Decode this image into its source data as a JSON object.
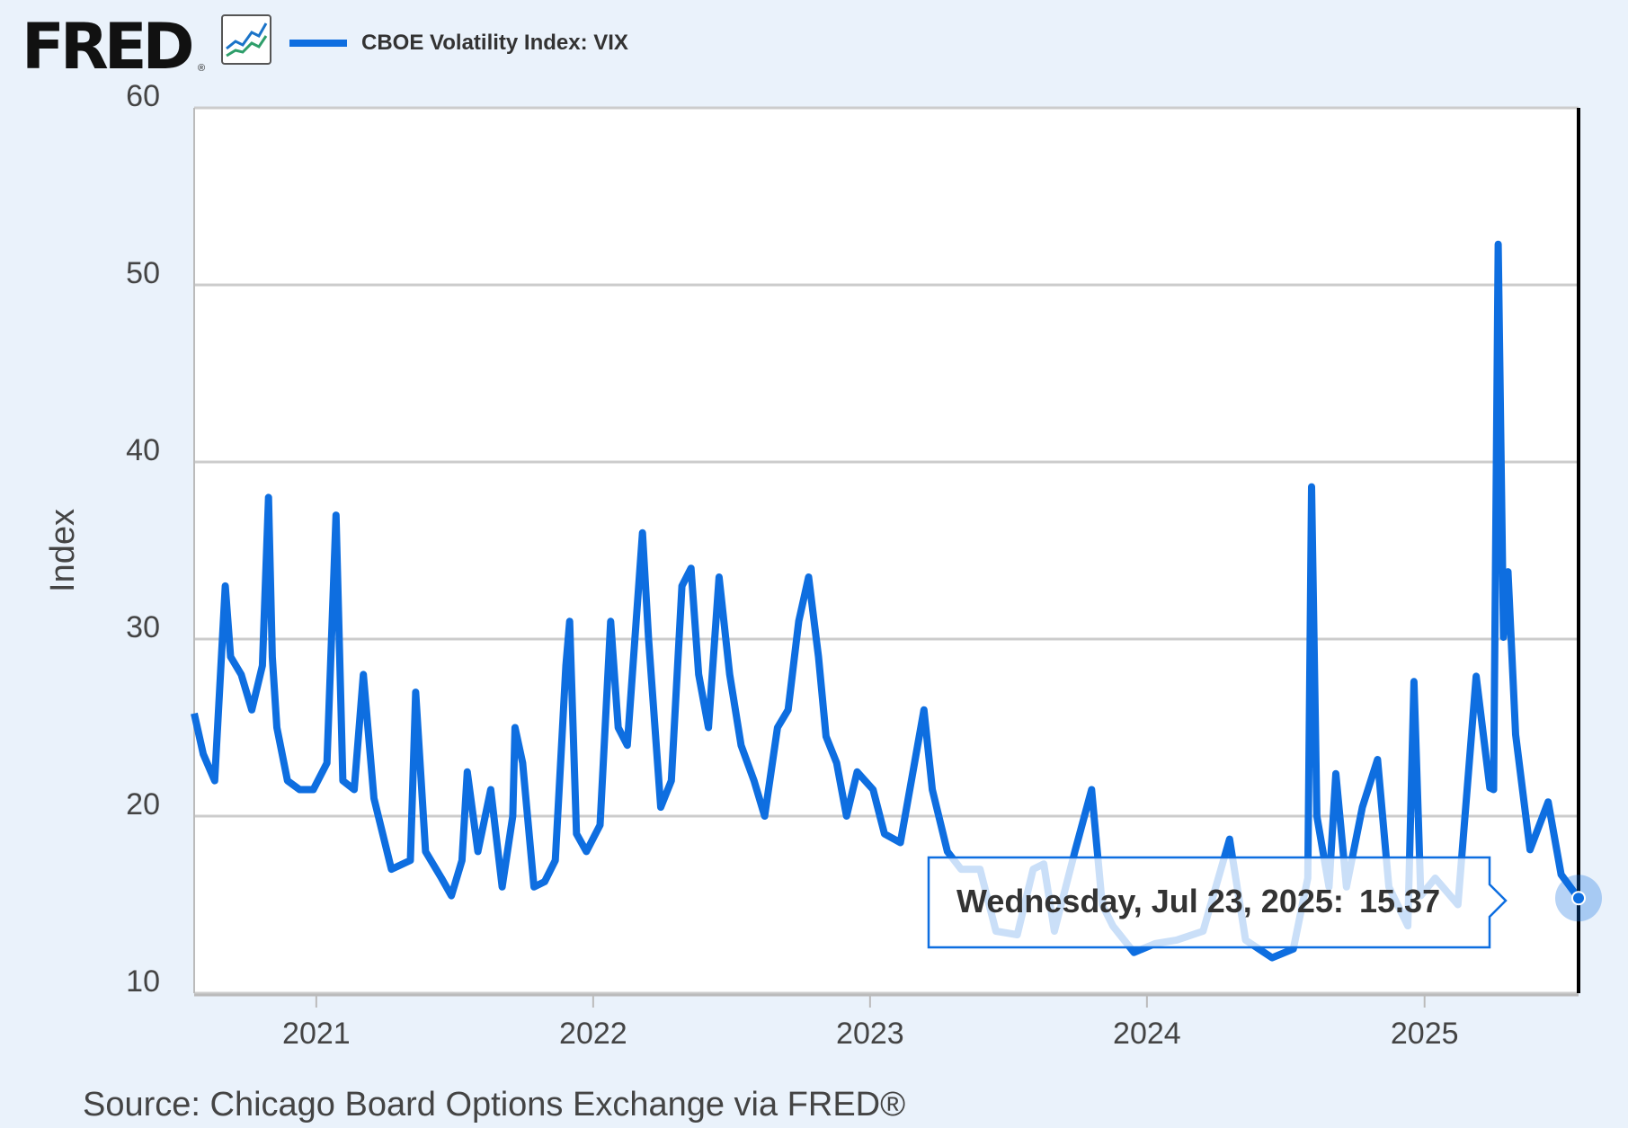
{
  "header": {
    "logo_text": "FRED",
    "logo_reg": "®",
    "icon": "line-chart-icon",
    "legend_label": "CBOE Volatility Index: VIX"
  },
  "source": "Source: Chicago Board Options Exchange via FRED®",
  "colors": {
    "series": "#0e6ee0",
    "background": "#eaf2fb",
    "plot": "#ffffff",
    "grid": "#cccccc",
    "tooltip_border": "#0e6ee0"
  },
  "tooltip": {
    "date": "Wednesday, Jul 23, 2025:",
    "value": "15.37"
  },
  "chart_data": {
    "type": "line",
    "title": "",
    "xlabel": "",
    "ylabel": "Index",
    "ylim": [
      10,
      60
    ],
    "yticks": [
      10,
      20,
      30,
      40,
      50,
      60
    ],
    "xlim": [
      "2020-07-24",
      "2025-07-23"
    ],
    "xticks": [
      {
        "label": "2021",
        "date": "2021-01-01"
      },
      {
        "label": "2022",
        "date": "2022-01-01"
      },
      {
        "label": "2023",
        "date": "2023-01-01"
      },
      {
        "label": "2024",
        "date": "2024-01-01"
      },
      {
        "label": "2025",
        "date": "2025-01-01"
      }
    ],
    "grid": true,
    "legend": "top-left",
    "series": [
      {
        "name": "CBOE Volatility Index: VIX",
        "points": [
          [
            "2020-07-24",
            25.8
          ],
          [
            "2020-08-05",
            23.5
          ],
          [
            "2020-08-20",
            22.0
          ],
          [
            "2020-09-03",
            33.0
          ],
          [
            "2020-09-10",
            29.0
          ],
          [
            "2020-09-24",
            28.0
          ],
          [
            "2020-10-08",
            26.0
          ],
          [
            "2020-10-22",
            28.5
          ],
          [
            "2020-10-30",
            38.0
          ],
          [
            "2020-11-04",
            29.0
          ],
          [
            "2020-11-10",
            25.0
          ],
          [
            "2020-11-24",
            22.0
          ],
          [
            "2020-12-10",
            21.5
          ],
          [
            "2020-12-28",
            21.5
          ],
          [
            "2021-01-15",
            23.0
          ],
          [
            "2021-01-27",
            37.0
          ],
          [
            "2021-02-05",
            22.0
          ],
          [
            "2021-02-20",
            21.5
          ],
          [
            "2021-03-04",
            28.0
          ],
          [
            "2021-03-18",
            21.0
          ],
          [
            "2021-04-10",
            17.0
          ],
          [
            "2021-05-05",
            17.5
          ],
          [
            "2021-05-12",
            27.0
          ],
          [
            "2021-05-25",
            18.0
          ],
          [
            "2021-06-15",
            16.5
          ],
          [
            "2021-06-28",
            15.5
          ],
          [
            "2021-07-12",
            17.5
          ],
          [
            "2021-07-19",
            22.5
          ],
          [
            "2021-08-02",
            18.0
          ],
          [
            "2021-08-19",
            21.5
          ],
          [
            "2021-09-03",
            16.0
          ],
          [
            "2021-09-17",
            20.0
          ],
          [
            "2021-09-20",
            25.0
          ],
          [
            "2021-09-30",
            23.0
          ],
          [
            "2021-10-15",
            16.0
          ],
          [
            "2021-10-29",
            16.3
          ],
          [
            "2021-11-12",
            17.5
          ],
          [
            "2021-11-26",
            28.5
          ],
          [
            "2021-12-01",
            31.0
          ],
          [
            "2021-12-10",
            19.0
          ],
          [
            "2021-12-23",
            18.0
          ],
          [
            "2022-01-10",
            19.5
          ],
          [
            "2022-01-24",
            31.0
          ],
          [
            "2022-02-03",
            25.0
          ],
          [
            "2022-02-15",
            24.0
          ],
          [
            "2022-03-07",
            36.0
          ],
          [
            "2022-03-15",
            30.0
          ],
          [
            "2022-03-31",
            20.5
          ],
          [
            "2022-04-14",
            22.0
          ],
          [
            "2022-04-28",
            33.0
          ],
          [
            "2022-05-10",
            34.0
          ],
          [
            "2022-05-20",
            28.0
          ],
          [
            "2022-06-02",
            25.0
          ],
          [
            "2022-06-16",
            33.5
          ],
          [
            "2022-06-30",
            28.0
          ],
          [
            "2022-07-15",
            24.0
          ],
          [
            "2022-08-01",
            22.0
          ],
          [
            "2022-08-15",
            20.0
          ],
          [
            "2022-09-01",
            25.0
          ],
          [
            "2022-09-15",
            26.0
          ],
          [
            "2022-09-29",
            31.0
          ],
          [
            "2022-10-12",
            33.5
          ],
          [
            "2022-10-25",
            29.0
          ],
          [
            "2022-11-04",
            24.5
          ],
          [
            "2022-11-18",
            23.0
          ],
          [
            "2022-12-01",
            20.0
          ],
          [
            "2022-12-15",
            22.5
          ],
          [
            "2023-01-05",
            21.5
          ],
          [
            "2023-01-20",
            19.0
          ],
          [
            "2023-02-10",
            18.5
          ],
          [
            "2023-03-13",
            26.0
          ],
          [
            "2023-03-24",
            21.5
          ],
          [
            "2023-04-13",
            18.0
          ],
          [
            "2023-05-01",
            17.0
          ],
          [
            "2023-05-26",
            17.0
          ],
          [
            "2023-06-16",
            13.5
          ],
          [
            "2023-07-14",
            13.3
          ],
          [
            "2023-08-04",
            17.0
          ],
          [
            "2023-08-18",
            17.3
          ],
          [
            "2023-09-01",
            13.5
          ],
          [
            "2023-09-28",
            18.0
          ],
          [
            "2023-10-20",
            21.5
          ],
          [
            "2023-11-03",
            15.0
          ],
          [
            "2023-11-17",
            13.8
          ],
          [
            "2023-12-15",
            12.3
          ],
          [
            "2024-01-12",
            12.8
          ],
          [
            "2024-02-09",
            13.0
          ],
          [
            "2024-03-15",
            13.5
          ],
          [
            "2024-04-19",
            18.7
          ],
          [
            "2024-05-10",
            13.0
          ],
          [
            "2024-06-14",
            12.0
          ],
          [
            "2024-07-12",
            12.5
          ],
          [
            "2024-07-31",
            16.5
          ],
          [
            "2024-08-05",
            38.6
          ],
          [
            "2024-08-12",
            20.0
          ],
          [
            "2024-08-28",
            16.0
          ],
          [
            "2024-09-06",
            22.4
          ],
          [
            "2024-09-20",
            16.0
          ],
          [
            "2024-10-11",
            20.5
          ],
          [
            "2024-10-31",
            23.2
          ],
          [
            "2024-11-15",
            16.0
          ],
          [
            "2024-12-10",
            13.8
          ],
          [
            "2024-12-18",
            27.6
          ],
          [
            "2024-12-27",
            15.5
          ],
          [
            "2025-01-15",
            16.5
          ],
          [
            "2025-02-14",
            15.0
          ],
          [
            "2025-03-10",
            27.9
          ],
          [
            "2025-03-28",
            21.6
          ],
          [
            "2025-04-02",
            21.5
          ],
          [
            "2025-04-08",
            52.3
          ],
          [
            "2025-04-15",
            30.1
          ],
          [
            "2025-04-21",
            33.8
          ],
          [
            "2025-05-01",
            24.6
          ],
          [
            "2025-05-20",
            18.1
          ],
          [
            "2025-06-13",
            20.8
          ],
          [
            "2025-06-30",
            16.7
          ],
          [
            "2025-07-23",
            15.37
          ]
        ]
      }
    ]
  }
}
